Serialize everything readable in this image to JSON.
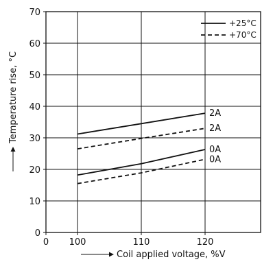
{
  "chart_data": {
    "type": "line",
    "xlabel": "Coil applied voltage, %V",
    "ylabel": "Temperature rise, °C",
    "xlim": [
      0,
      130
    ],
    "x_axis_break": [
      0,
      100
    ],
    "ylim": [
      0,
      70
    ],
    "x_ticks": [
      0,
      100,
      110,
      120
    ],
    "y_ticks": [
      0,
      10,
      20,
      30,
      40,
      50,
      60,
      70
    ],
    "grid": true,
    "legend": {
      "placement": "top-right",
      "entries": [
        {
          "label": "+25°C",
          "style": "solid"
        },
        {
          "label": "+70°C",
          "style": "dashed"
        }
      ]
    },
    "series": [
      {
        "label": "2A",
        "temperature": "+25°C",
        "style": "solid",
        "x": [
          100,
          110,
          120
        ],
        "y": [
          31.2,
          34.5,
          37.8
        ]
      },
      {
        "label": "2A",
        "temperature": "+70°C",
        "style": "dashed",
        "x": [
          100,
          110,
          120
        ],
        "y": [
          26.5,
          29.8,
          33.0
        ]
      },
      {
        "label": "0A",
        "temperature": "+25°C",
        "style": "solid",
        "x": [
          100,
          110,
          120
        ],
        "y": [
          18.2,
          21.8,
          26.3
        ]
      },
      {
        "label": "0A",
        "temperature": "+70°C",
        "style": "dashed",
        "x": [
          100,
          110,
          120
        ],
        "y": [
          15.5,
          18.9,
          23.2
        ]
      }
    ],
    "colors": {
      "ink": "#111111",
      "grid": "#111111",
      "background": "#ffffff"
    }
  }
}
